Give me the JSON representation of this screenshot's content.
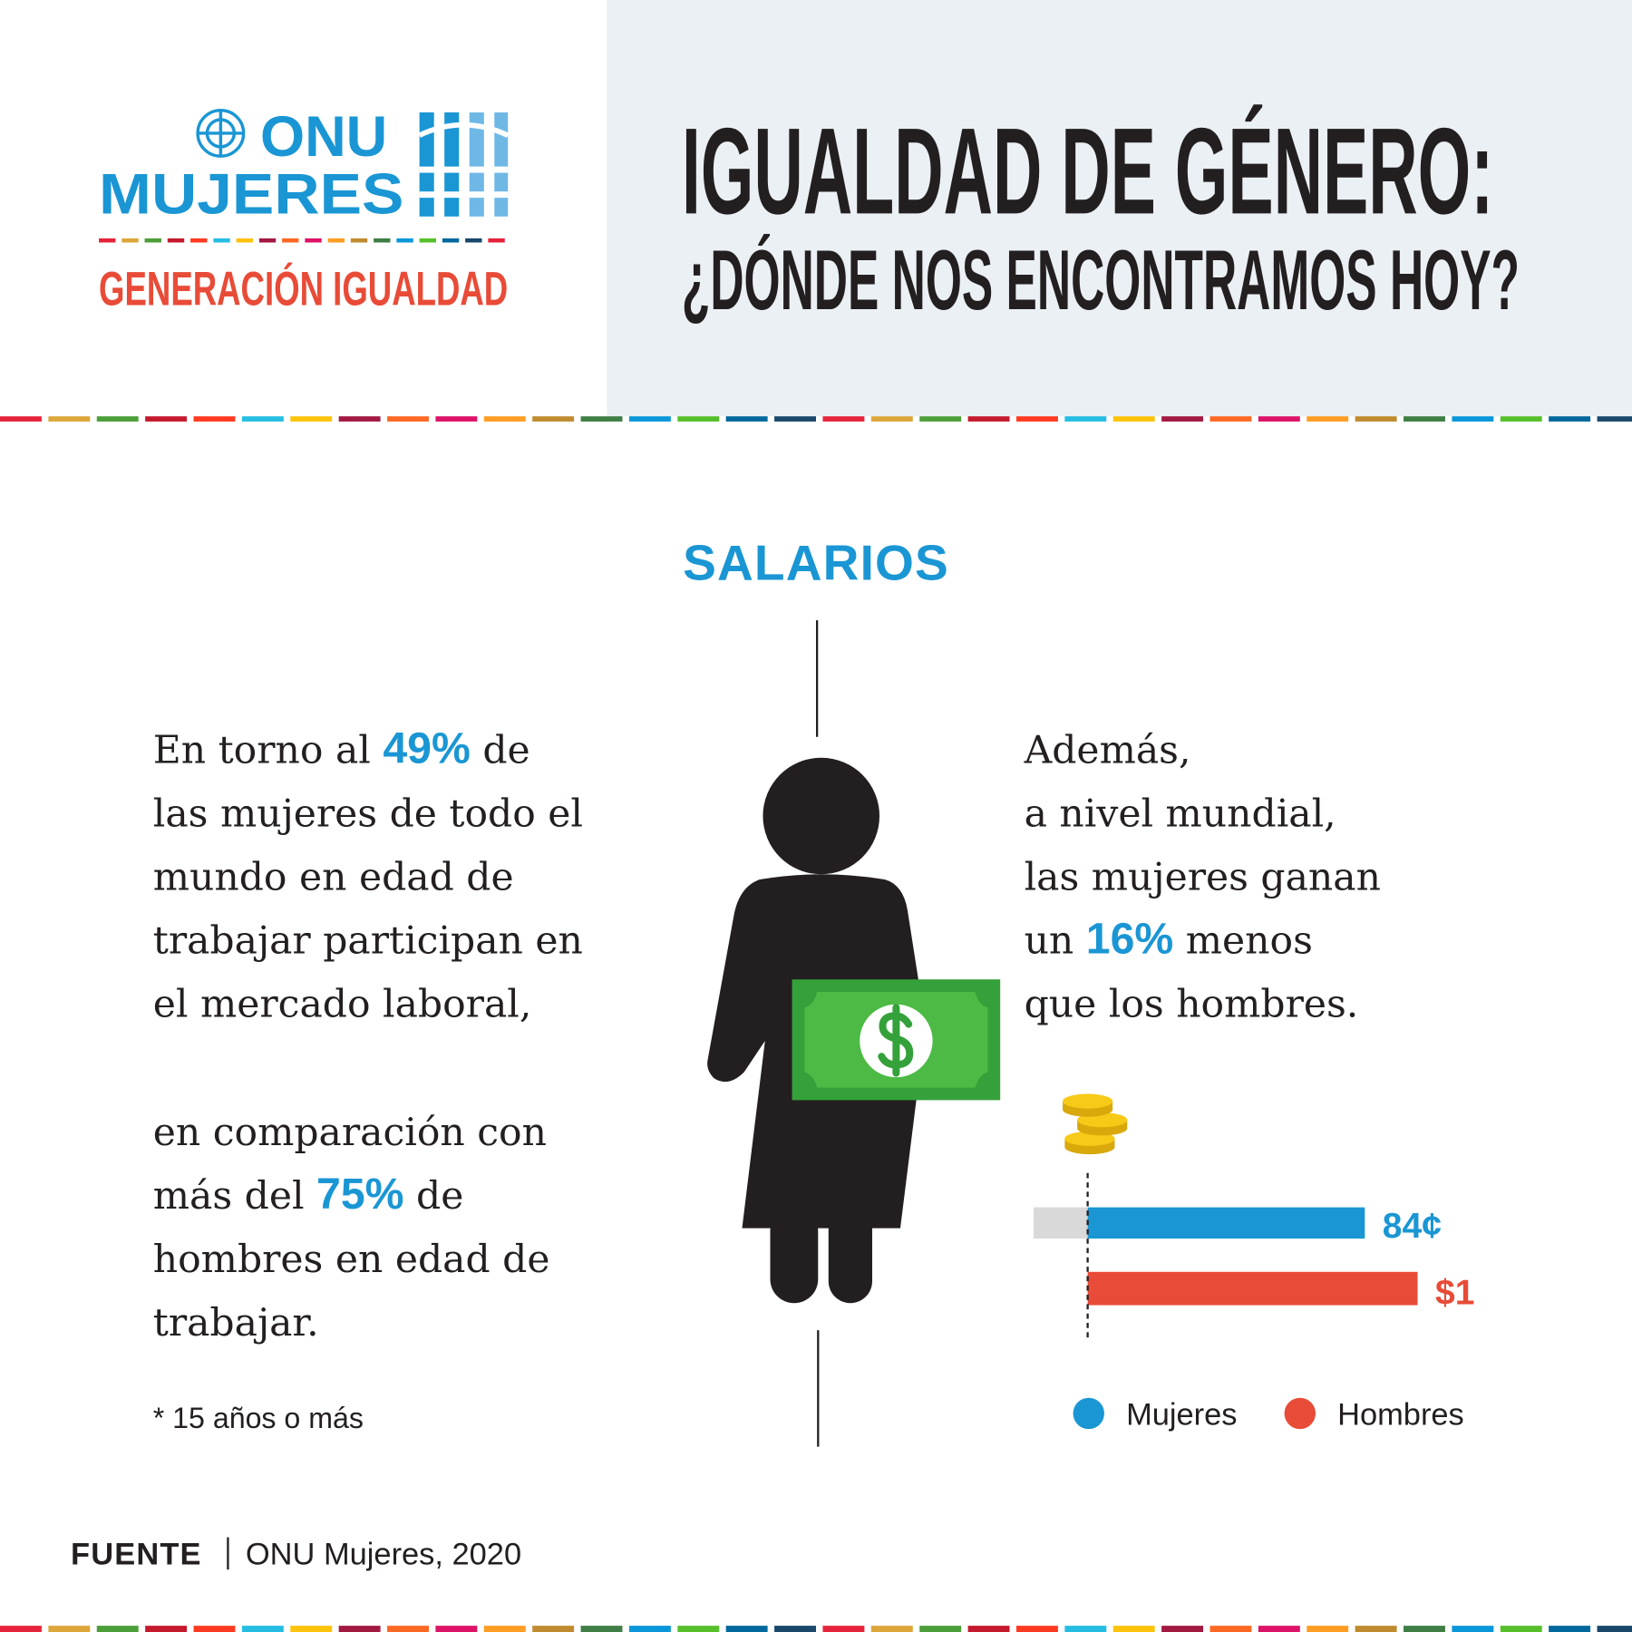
{
  "header": {
    "logo_line1": "ONU",
    "logo_line2": "MUJERES",
    "tagline": "GENERACIÓN IGUALDAD",
    "title": "IGUALDAD DE GÉNERO:",
    "subtitle": "¿DÓNDE NOS ENCONTRAMOS HOY?"
  },
  "section_title": "SALARIOS",
  "left_text": {
    "paragraphs": [
      [
        {
          "text": "En torno al ",
          "figure": "49%",
          "rest": " de"
        },
        "las mujeres de todo el",
        "mundo en edad de",
        "trabajar participan en",
        "el mercado laboral,"
      ],
      [
        "en comparación con",
        {
          "text": "más del ",
          "figure": "75%",
          "rest": " de"
        },
        "hombres en edad de",
        "trabajar."
      ]
    ],
    "note": "* 15 años o más"
  },
  "right_text": {
    "lines": [
      "Además,",
      "a nivel mundial,",
      "las mujeres ganan",
      {
        "text": "un ",
        "figure": "16%",
        "rest": " menos"
      },
      "que los hombres."
    ]
  },
  "chart_data": {
    "type": "bar",
    "series": [
      {
        "name": "Mujeres",
        "color": "#1a96d4",
        "values": [
          0.84
        ],
        "value_labels": [
          "84¢"
        ]
      },
      {
        "name": "Hombres",
        "color": "#e84b37",
        "values": [
          1
        ],
        "value_labels": [
          "$1"
        ]
      }
    ]
  },
  "footer": {
    "label": "FUENTE",
    "source": "ONU Mujeres, 2020"
  }
}
